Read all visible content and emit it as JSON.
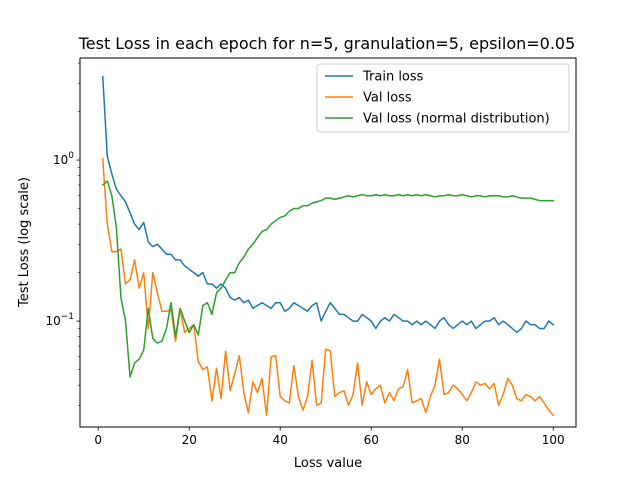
{
  "chart_data": {
    "type": "line",
    "title": "Test Loss in each epoch for n=5, granulation=5, epsilon=0.05",
    "xlabel": "Loss value",
    "ylabel": "Test Loss (log scale)",
    "yscale": "log",
    "xlim": [
      -4,
      105
    ],
    "ylim": [
      0.022,
      4.3
    ],
    "xticks": [
      0,
      20,
      40,
      60,
      80,
      100
    ],
    "xtick_labels": [
      "0",
      "20",
      "40",
      "60",
      "80",
      "100"
    ],
    "yticks": [
      {
        "value": 0.1,
        "base": "10",
        "exp": "−1"
      },
      {
        "value": 1,
        "base": "10",
        "exp": "0"
      }
    ],
    "grid": false,
    "legend_position": "top-right",
    "series": [
      {
        "name": "Train loss",
        "color": "#1f77b4",
        "x_start": 1,
        "values": [
          3.3,
          1.05,
          0.82,
          0.66,
          0.6,
          0.55,
          0.47,
          0.4,
          0.37,
          0.41,
          0.31,
          0.29,
          0.3,
          0.28,
          0.26,
          0.26,
          0.24,
          0.24,
          0.22,
          0.21,
          0.2,
          0.19,
          0.2,
          0.17,
          0.17,
          0.16,
          0.17,
          0.16,
          0.14,
          0.135,
          0.14,
          0.13,
          0.135,
          0.12,
          0.125,
          0.13,
          0.125,
          0.12,
          0.13,
          0.13,
          0.115,
          0.12,
          0.13,
          0.125,
          0.12,
          0.115,
          0.125,
          0.13,
          0.1,
          0.115,
          0.13,
          0.12,
          0.11,
          0.11,
          0.105,
          0.1,
          0.1,
          0.11,
          0.105,
          0.1,
          0.09,
          0.1,
          0.105,
          0.1,
          0.11,
          0.105,
          0.1,
          0.1,
          0.095,
          0.1,
          0.095,
          0.1,
          0.095,
          0.09,
          0.1,
          0.105,
          0.095,
          0.09,
          0.095,
          0.1,
          0.095,
          0.1,
          0.09,
          0.095,
          0.1,
          0.1,
          0.105,
          0.095,
          0.1,
          0.095,
          0.09,
          0.085,
          0.09,
          0.1,
          0.095,
          0.095,
          0.09,
          0.09,
          0.1,
          0.095
        ]
      },
      {
        "name": "Val loss",
        "color": "#ff7f0e",
        "x_start": 1,
        "values": [
          1.02,
          0.4,
          0.27,
          0.27,
          0.28,
          0.17,
          0.18,
          0.24,
          0.16,
          0.2,
          0.09,
          0.2,
          0.15,
          0.115,
          0.115,
          0.118,
          0.075,
          0.118,
          0.085,
          0.09,
          0.095,
          0.056,
          0.05,
          0.052,
          0.032,
          0.051,
          0.033,
          0.065,
          0.037,
          0.047,
          0.061,
          0.036,
          0.027,
          0.042,
          0.036,
          0.044,
          0.026,
          0.06,
          0.061,
          0.034,
          0.032,
          0.031,
          0.053,
          0.034,
          0.028,
          0.034,
          0.057,
          0.03,
          0.031,
          0.067,
          0.065,
          0.034,
          0.036,
          0.037,
          0.03,
          0.035,
          0.055,
          0.03,
          0.042,
          0.035,
          0.038,
          0.04,
          0.031,
          0.036,
          0.032,
          0.038,
          0.039,
          0.05,
          0.031,
          0.032,
          0.033,
          0.027,
          0.034,
          0.04,
          0.058,
          0.035,
          0.036,
          0.04,
          0.038,
          0.035,
          0.032,
          0.036,
          0.042,
          0.04,
          0.041,
          0.038,
          0.041,
          0.03,
          0.035,
          0.044,
          0.04,
          0.033,
          0.032,
          0.035,
          0.034,
          0.032,
          0.034,
          0.031,
          0.028,
          0.026
        ]
      },
      {
        "name": "Val loss (normal distribution)",
        "color": "#2ca02c",
        "x_start": 1,
        "values": [
          0.7,
          0.74,
          0.6,
          0.38,
          0.14,
          0.1,
          0.045,
          0.055,
          0.058,
          0.066,
          0.12,
          0.078,
          0.073,
          0.075,
          0.09,
          0.13,
          0.08,
          0.12,
          0.1,
          0.085,
          0.095,
          0.082,
          0.125,
          0.13,
          0.11,
          0.15,
          0.16,
          0.18,
          0.2,
          0.2,
          0.23,
          0.25,
          0.28,
          0.3,
          0.33,
          0.36,
          0.37,
          0.4,
          0.42,
          0.44,
          0.45,
          0.48,
          0.5,
          0.5,
          0.52,
          0.52,
          0.54,
          0.55,
          0.56,
          0.58,
          0.58,
          0.57,
          0.58,
          0.59,
          0.6,
          0.59,
          0.6,
          0.61,
          0.6,
          0.6,
          0.61,
          0.6,
          0.61,
          0.6,
          0.6,
          0.61,
          0.6,
          0.61,
          0.6,
          0.61,
          0.6,
          0.61,
          0.6,
          0.59,
          0.6,
          0.6,
          0.61,
          0.6,
          0.6,
          0.61,
          0.6,
          0.59,
          0.6,
          0.6,
          0.59,
          0.6,
          0.6,
          0.6,
          0.59,
          0.59,
          0.6,
          0.59,
          0.58,
          0.58,
          0.58,
          0.57,
          0.56,
          0.56,
          0.56,
          0.56
        ]
      }
    ]
  }
}
